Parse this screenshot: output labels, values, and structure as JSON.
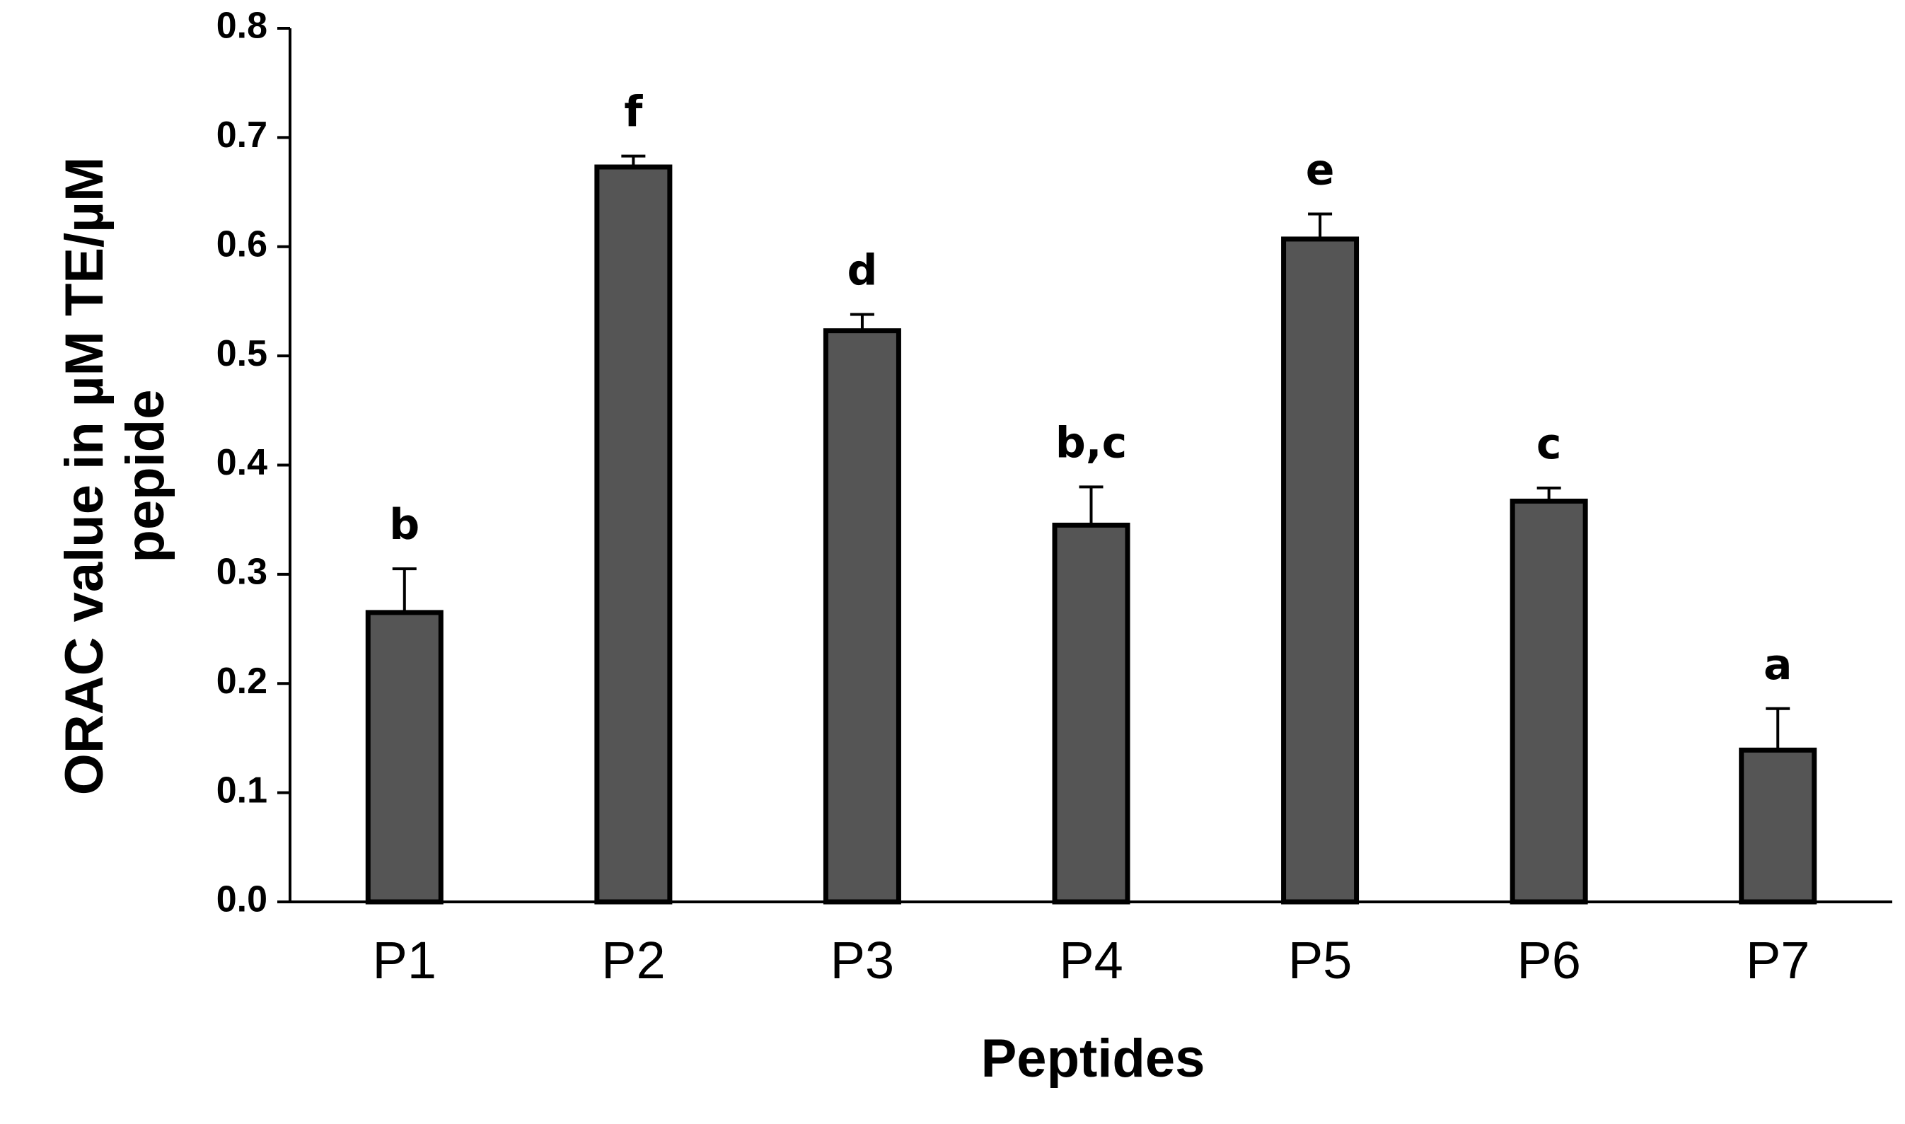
{
  "chart_data": {
    "type": "bar",
    "title": "",
    "xlabel": "Peptides",
    "ylabel_lines": [
      "ORAC value in µM TE/µM",
      "pepide"
    ],
    "categories": [
      "P1",
      "P2",
      "P3",
      "P4",
      "P5",
      "P6",
      "P7"
    ],
    "values": [
      0.265,
      0.673,
      0.523,
      0.345,
      0.607,
      0.367,
      0.139
    ],
    "errors": [
      0.04,
      0.01,
      0.015,
      0.035,
      0.023,
      0.012,
      0.038
    ],
    "significance": [
      "b",
      "f",
      "d",
      "b,c",
      "e",
      "c",
      "a"
    ],
    "ylim": [
      0,
      0.8
    ],
    "yticks": [
      "0.0",
      "0.1",
      "0.2",
      "0.3",
      "0.4",
      "0.5",
      "0.6",
      "0.7",
      "0.8"
    ],
    "grid": false,
    "bar_color": "#555555",
    "edge_color": "#000000"
  }
}
